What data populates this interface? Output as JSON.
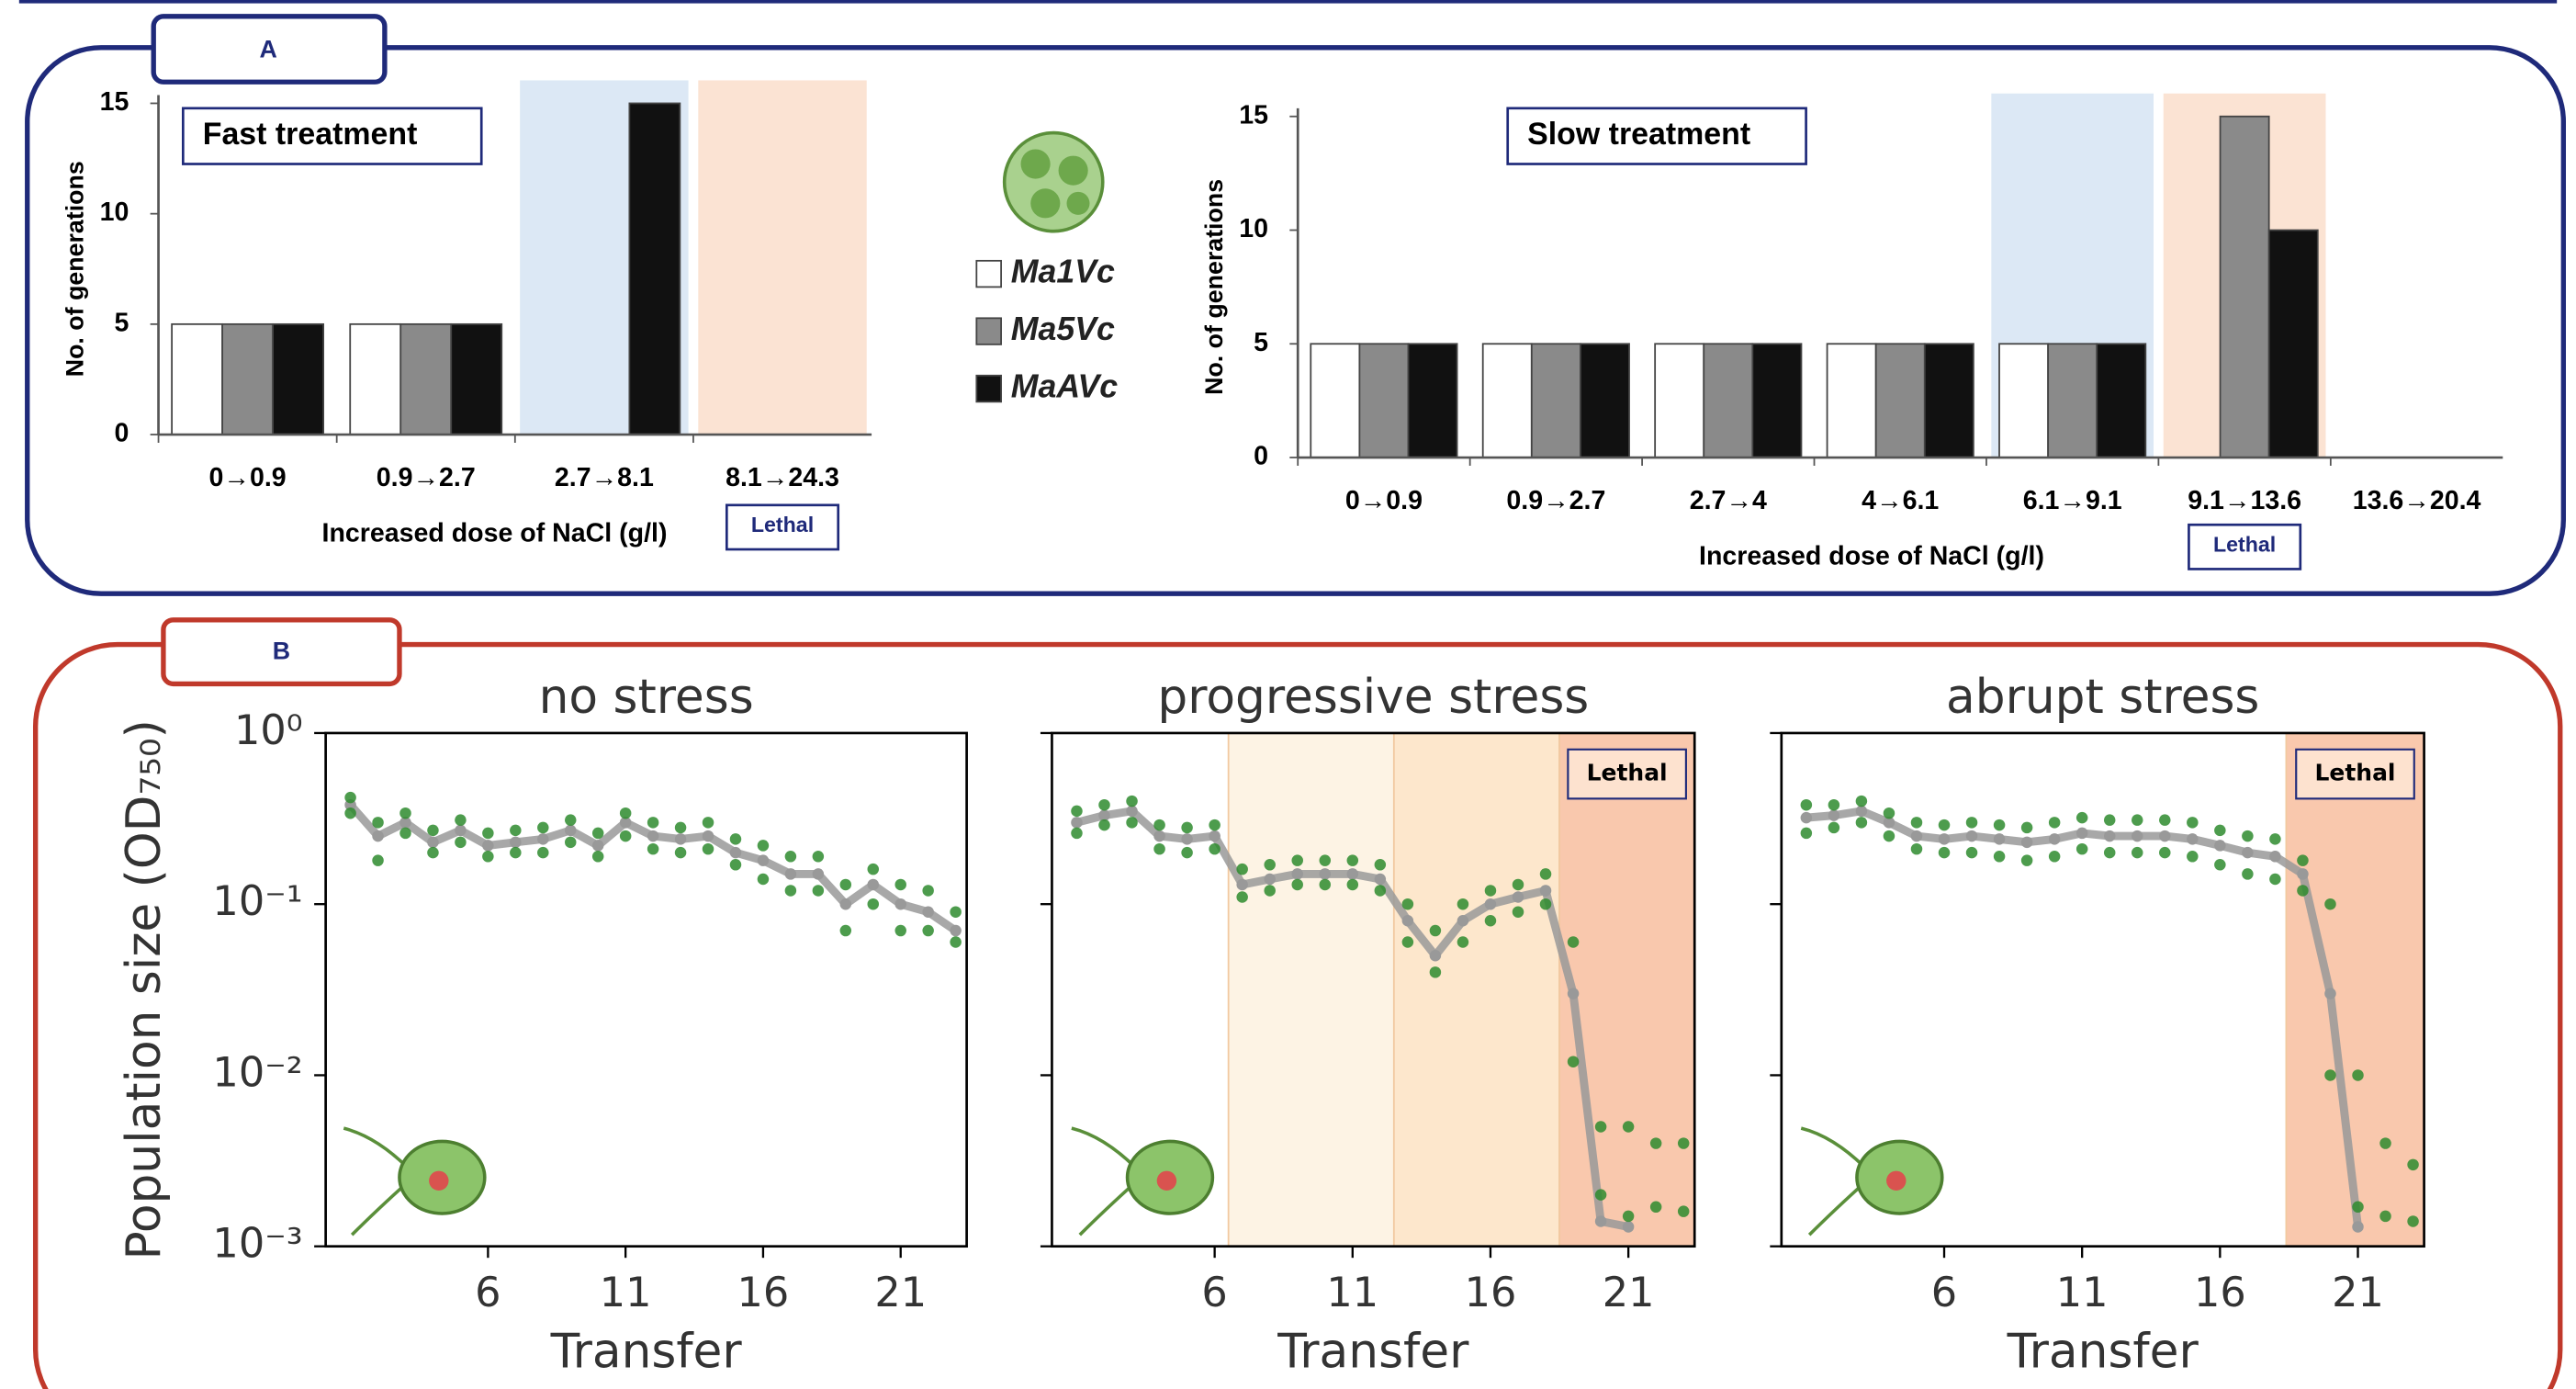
{
  "panels": [
    "A",
    "B"
  ],
  "chart_data": [
    {
      "type": "bar",
      "title": "Fast treatment",
      "xlabel": "Increased dose of NaCl (g/l)",
      "ylabel": "No. of generations",
      "categories": [
        "0→0.9",
        "0.9→2.7",
        "2.7→8.1",
        "8.1→24.3"
      ],
      "series": [
        {
          "name": "Ma1Vc",
          "color": "#ffffff",
          "values": [
            5,
            5,
            0,
            0
          ]
        },
        {
          "name": "Ma5Vc",
          "color": "#8a8a8a",
          "values": [
            5,
            5,
            0,
            0
          ]
        },
        {
          "name": "MaAVc",
          "color": "#111111",
          "values": [
            5,
            5,
            15,
            0
          ]
        }
      ],
      "ylim": [
        0,
        15
      ],
      "yticks": [
        0,
        5,
        10,
        15
      ],
      "regions": [
        {
          "index": 2,
          "color": "#dce8f5"
        },
        {
          "index": 3,
          "color": "#fbe3d3",
          "label": "Lethal"
        }
      ]
    },
    {
      "type": "bar",
      "title": "Slow treatment",
      "xlabel": "Increased dose of NaCl (g/l)",
      "ylabel": "No. of generations",
      "categories": [
        "0→0.9",
        "0.9→2.7",
        "2.7→4",
        "4→6.1",
        "6.1→9.1",
        "9.1→13.6",
        "13.6→20.4"
      ],
      "series": [
        {
          "color": "#ffffff",
          "values": [
            5,
            5,
            5,
            5,
            5,
            0,
            0
          ]
        },
        {
          "color": "#8a8a8a",
          "values": [
            5,
            5,
            5,
            5,
            5,
            15,
            0
          ]
        },
        {
          "color": "#111111",
          "values": [
            5,
            5,
            5,
            5,
            5,
            10,
            0
          ]
        }
      ],
      "ylim": [
        0,
        15
      ],
      "yticks": [
        0,
        5,
        10,
        15
      ],
      "regions": [
        {
          "index": 4,
          "color": "#dce8f5"
        },
        {
          "index": 5,
          "color": "#fbe3d3",
          "label": "Lethal"
        }
      ]
    },
    {
      "type": "line",
      "title": "no stress",
      "xlabel": "Transfer",
      "ylabel": "Population size (OD₇₅₀)",
      "log_y": true,
      "x": [
        1,
        2,
        3,
        4,
        5,
        6,
        7,
        8,
        9,
        10,
        11,
        12,
        13,
        14,
        15,
        16,
        17,
        18,
        19,
        20,
        21,
        22,
        23
      ],
      "series": [
        {
          "color": "#999999",
          "values": [
            0.38,
            0.25,
            0.3,
            0.23,
            0.27,
            0.22,
            0.23,
            0.24,
            0.27,
            0.22,
            0.3,
            0.25,
            0.24,
            0.25,
            0.2,
            0.18,
            0.15,
            0.15,
            0.1,
            0.13,
            0.1,
            0.09,
            0.07
          ]
        },
        {
          "color": "#2e8b2e",
          "values": [
            0.42,
            0.3,
            0.34,
            0.27,
            0.31,
            0.26,
            0.27,
            0.28,
            0.31,
            0.26,
            0.34,
            0.3,
            0.28,
            0.3,
            0.24,
            0.22,
            0.19,
            0.19,
            0.13,
            0.16,
            0.13,
            0.12,
            0.09
          ]
        },
        {
          "color": "#2e8b2e",
          "values": [
            0.34,
            0.18,
            0.26,
            0.2,
            0.23,
            0.19,
            0.2,
            0.2,
            0.23,
            0.19,
            0.25,
            0.21,
            0.2,
            0.21,
            0.17,
            0.14,
            0.12,
            0.12,
            0.07,
            0.1,
            0.07,
            0.07,
            0.06
          ]
        }
      ],
      "xlim": [
        0.1,
        23.4
      ],
      "xticks": [
        6,
        11,
        16,
        21
      ],
      "ylim": [
        0.001,
        1
      ],
      "yticks": [
        {
          "value": 1,
          "label": "10⁰"
        },
        {
          "value": 0.1,
          "label": "10⁻¹"
        },
        {
          "value": 0.01,
          "label": "10⁻²"
        },
        {
          "value": 0.001,
          "label": "10⁻³"
        }
      ],
      "regions": []
    },
    {
      "type": "line",
      "title": "progressive stress",
      "xlabel": "Transfer",
      "log_y": true,
      "x": [
        1,
        2,
        3,
        4,
        5,
        6,
        7,
        8,
        9,
        10,
        11,
        12,
        13,
        14,
        15,
        16,
        17,
        18,
        19,
        20,
        21,
        22,
        23
      ],
      "series": [
        {
          "color": "#999999",
          "values": [
            0.3,
            0.33,
            0.35,
            0.25,
            0.24,
            0.25,
            0.13,
            0.14,
            0.15,
            0.15,
            0.15,
            0.14,
            0.08,
            0.05,
            0.08,
            0.1,
            0.11,
            0.12,
            0.03,
            0.0014,
            0.0013,
            null,
            null
          ]
        },
        {
          "color": "#2e8b2e",
          "values": [
            0.35,
            0.38,
            0.4,
            0.29,
            0.28,
            0.29,
            0.16,
            0.17,
            0.18,
            0.18,
            0.18,
            0.17,
            0.1,
            0.07,
            0.1,
            0.12,
            0.13,
            0.15,
            0.06,
            0.005,
            0.005,
            0.004,
            0.004
          ]
        },
        {
          "color": "#2e8b2e",
          "values": [
            0.26,
            0.29,
            0.3,
            0.21,
            0.2,
            0.21,
            0.11,
            0.12,
            0.13,
            0.13,
            0.13,
            0.12,
            0.06,
            0.04,
            0.06,
            0.08,
            0.09,
            0.1,
            0.012,
            0.002,
            0.0015,
            0.0017,
            0.0016
          ]
        }
      ],
      "xlim": [
        0.1,
        23.4
      ],
      "xticks": [
        6,
        11,
        16,
        21
      ],
      "ylim": [
        0.001,
        1
      ],
      "regions": [
        {
          "x0": 6.5,
          "x1": 12.5,
          "color": "#fdf3e4"
        },
        {
          "x0": 12.5,
          "x1": 18.5,
          "color": "#fde7cc"
        },
        {
          "x0": 18.5,
          "x1": 23.4,
          "color": "#f9c8ad",
          "label": "Lethal"
        }
      ]
    },
    {
      "type": "line",
      "title": "abrupt stress",
      "xlabel": "Transfer",
      "log_y": true,
      "x": [
        1,
        2,
        3,
        4,
        5,
        6,
        7,
        8,
        9,
        10,
        11,
        12,
        13,
        14,
        15,
        16,
        17,
        18,
        19,
        20,
        21,
        22,
        23
      ],
      "series": [
        {
          "color": "#999999",
          "values": [
            0.32,
            0.33,
            0.35,
            0.3,
            0.25,
            0.24,
            0.25,
            0.24,
            0.23,
            0.24,
            0.26,
            0.25,
            0.25,
            0.25,
            0.24,
            0.22,
            0.2,
            0.19,
            0.15,
            0.03,
            0.0013,
            null,
            null
          ]
        },
        {
          "color": "#2e8b2e",
          "values": [
            0.38,
            0.38,
            0.4,
            0.34,
            0.3,
            0.29,
            0.3,
            0.29,
            0.28,
            0.3,
            0.32,
            0.31,
            0.31,
            0.31,
            0.3,
            0.27,
            0.25,
            0.24,
            0.18,
            0.1,
            0.01,
            0.004,
            0.003
          ]
        },
        {
          "color": "#2e8b2e",
          "values": [
            0.26,
            0.28,
            0.3,
            0.25,
            0.21,
            0.2,
            0.2,
            0.19,
            0.18,
            0.19,
            0.21,
            0.2,
            0.2,
            0.2,
            0.19,
            0.17,
            0.15,
            0.14,
            0.12,
            0.01,
            0.0017,
            0.0015,
            0.0014
          ]
        }
      ],
      "xlim": [
        0.1,
        23.4
      ],
      "xticks": [
        6,
        11,
        16,
        21
      ],
      "ylim": [
        0.001,
        1
      ],
      "regions": [
        {
          "x0": 18.4,
          "x1": 23.4,
          "color": "#f9c8ad",
          "label": "Lethal"
        }
      ]
    }
  ]
}
